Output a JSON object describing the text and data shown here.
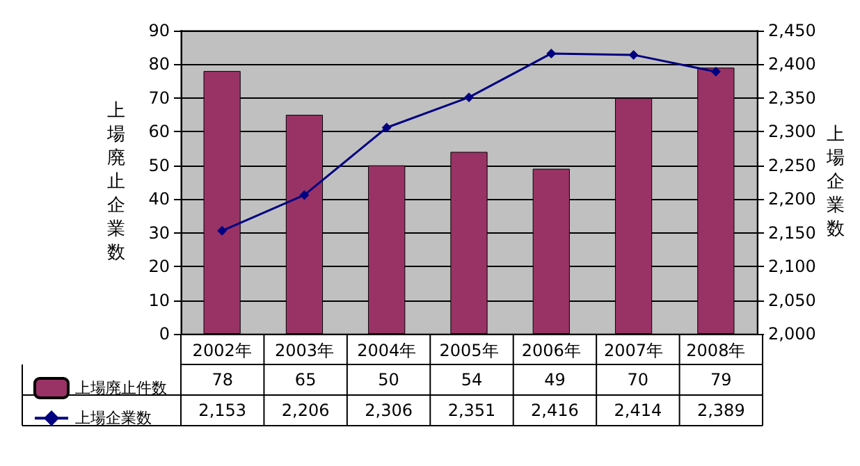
{
  "chart_data": {
    "type": "bar",
    "ylabel": "上場廃止企業数",
    "y2label": "上場企業数",
    "categories": [
      "2002年",
      "2003年",
      "2004年",
      "2005年",
      "2006年",
      "2007年",
      "2008年"
    ],
    "series": [
      {
        "name": "上場廃止件数",
        "color": "#993366",
        "values": [
          78,
          65,
          50,
          54,
          49,
          70,
          79
        ],
        "value_labels": [
          "78",
          "65",
          "50",
          "54",
          "49",
          "70",
          "79"
        ]
      },
      {
        "name": "上場企業数",
        "type": "line",
        "axis": "y2",
        "color": "#000080",
        "marker": "diamond",
        "values": [
          2153,
          2206,
          2306,
          2351,
          2416,
          2414,
          2389
        ],
        "value_labels": [
          "2,153",
          "2,206",
          "2,306",
          "2,351",
          "2,416",
          "2,414",
          "2,389"
        ]
      }
    ],
    "ylim": [
      0,
      90
    ],
    "yticks": [
      0,
      10,
      20,
      30,
      40,
      50,
      60,
      70,
      80,
      90
    ],
    "y2lim": [
      2000,
      2450
    ],
    "y2ticks": [
      {
        "value": 2000,
        "label": "2,000"
      },
      {
        "value": 2050,
        "label": "2,050"
      },
      {
        "value": 2100,
        "label": "2,100"
      },
      {
        "value": 2150,
        "label": "2,150"
      },
      {
        "value": 2200,
        "label": "2,200"
      },
      {
        "value": 2250,
        "label": "2,250"
      },
      {
        "value": 2300,
        "label": "2,300"
      },
      {
        "value": 2350,
        "label": "2,350"
      },
      {
        "value": 2400,
        "label": "2,400"
      },
      {
        "value": 2450,
        "label": "2,450"
      }
    ],
    "grid": "y",
    "legend": "bottom left"
  }
}
